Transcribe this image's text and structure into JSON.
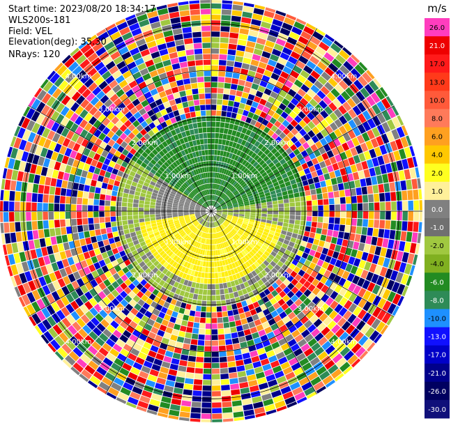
{
  "info": {
    "start_time": "Start time: 2023/08/20 18:34:17",
    "instrument": "WLS200s-181",
    "field": "Field: VEL",
    "elevation": "Elevation(deg): 35.30",
    "nrays": "NRays: 120"
  },
  "chart_data": {
    "type": "heatmap",
    "projection": "polar-ppi",
    "field": "VEL",
    "units": "m/s",
    "nrays": 120,
    "elevation_deg": 35.3,
    "max_range_km": 4.5,
    "range_rings_km": [
      1.0,
      2.0,
      3.0,
      4.0
    ],
    "ring_labels": [
      "1.00km",
      "2.00km",
      "3.00km",
      "4.00km"
    ],
    "clean_region_km": 2.0,
    "colorbar": {
      "unit_label": "m/s",
      "ticks": [
        "26.0",
        "21.0",
        "17.0",
        "13.0",
        "10.0",
        "8.0",
        "6.0",
        "4.0",
        "2.0",
        "1.0",
        "0.0",
        "-1.0",
        "-2.0",
        "-4.0",
        "-6.0",
        "-8.0",
        "-10.0",
        "-13.0",
        "-17.0",
        "-21.0",
        "-26.0",
        "-30.0"
      ],
      "colors": [
        "#ff3dbe",
        "#ee0000",
        "#ff1a1a",
        "#ff3a1a",
        "#ff5a3a",
        "#ff7a5a",
        "#ffa020",
        "#ffc800",
        "#ffff20",
        "#fff09a",
        "#808080",
        "#707070",
        "#a0c840",
        "#80b020",
        "#228b22",
        "#2e8b57",
        "#1e90ff",
        "#1010ff",
        "#0000c8",
        "#00008b",
        "#000060",
        "#10107a"
      ]
    }
  }
}
